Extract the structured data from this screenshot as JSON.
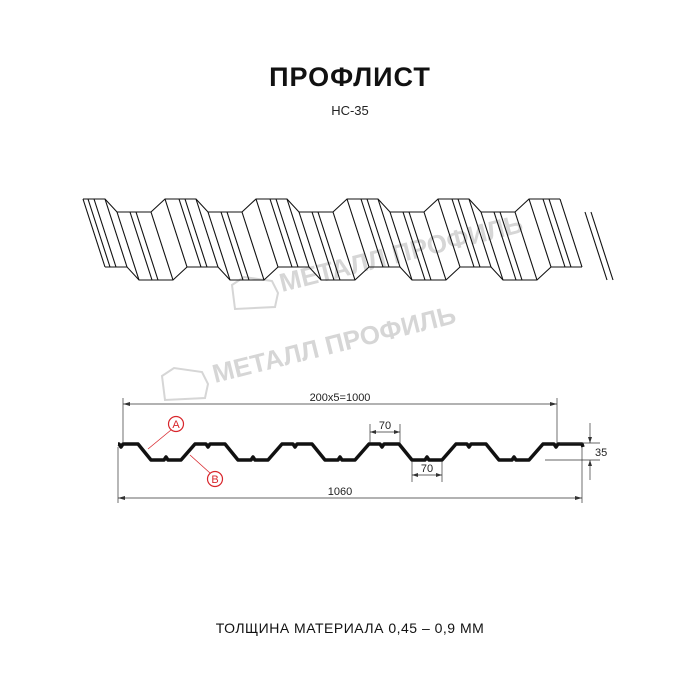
{
  "header": {
    "title": "ПРОФЛИСТ",
    "subtitle": "НС-35"
  },
  "watermark": {
    "text": "МЕТАЛЛ ПРОФИЛЬ"
  },
  "dimensions": {
    "pitch_total": "200x5=1000",
    "top_width": "70",
    "bottom_width": "70",
    "height": "35",
    "overall_width": "1060"
  },
  "labels": {
    "a": "A",
    "b": "B"
  },
  "footer": {
    "text": "ТОЛЩИНА МАТЕРИАЛА 0,45 – 0,9 ММ"
  },
  "colors": {
    "line": "#111111",
    "label": "#d8262c",
    "watermark": "#d6d6d6"
  }
}
